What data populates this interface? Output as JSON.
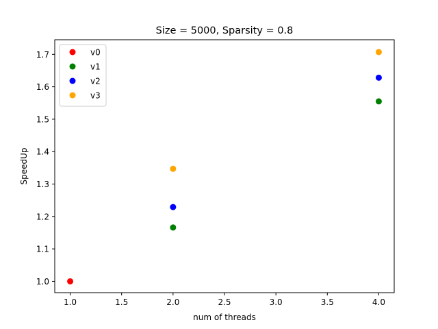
{
  "chart_data": {
    "type": "scatter",
    "title": "Size = 5000, Sparsity = 0.8",
    "xlabel": "num of threads",
    "ylabel": "SpeedUp",
    "xlim": [
      0.85,
      4.15
    ],
    "ylim": [
      0.965,
      1.745
    ],
    "xticks": [
      1.0,
      1.5,
      2.0,
      2.5,
      3.0,
      3.5,
      4.0
    ],
    "xtick_labels": [
      "1.0",
      "1.5",
      "2.0",
      "2.5",
      "3.0",
      "3.5",
      "4.0"
    ],
    "yticks": [
      1.0,
      1.1,
      1.2,
      1.3,
      1.4,
      1.5,
      1.6,
      1.7
    ],
    "ytick_labels": [
      "1.0",
      "1.1",
      "1.2",
      "1.3",
      "1.4",
      "1.5",
      "1.6",
      "1.7"
    ],
    "grid": false,
    "legend_position": "top-left",
    "series": [
      {
        "name": "v0",
        "color": "#ff0000",
        "points": [
          {
            "x": 1,
            "y": 1.0
          }
        ]
      },
      {
        "name": "v1",
        "color": "#008000",
        "points": [
          {
            "x": 2,
            "y": 1.166
          },
          {
            "x": 4,
            "y": 1.555
          }
        ]
      },
      {
        "name": "v2",
        "color": "#0000ff",
        "points": [
          {
            "x": 2,
            "y": 1.229
          },
          {
            "x": 4,
            "y": 1.628
          }
        ]
      },
      {
        "name": "v3",
        "color": "#ffa500",
        "points": [
          {
            "x": 2,
            "y": 1.347
          },
          {
            "x": 4,
            "y": 1.707
          }
        ]
      }
    ]
  }
}
